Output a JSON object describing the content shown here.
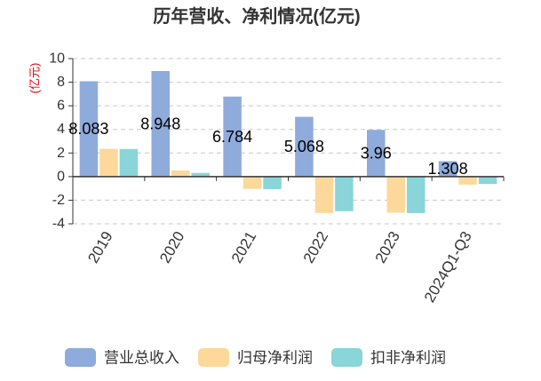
{
  "chart_data": {
    "type": "bar",
    "title": "历年营收、净利情况(亿元)",
    "xlabel": "",
    "ylabel": "(亿元)",
    "ylabel_color": "#e60012",
    "categories": [
      "2019",
      "2020",
      "2021",
      "2022",
      "2023",
      "2024Q1-Q3"
    ],
    "ylim": [
      -4,
      10
    ],
    "yticks": [
      10,
      8,
      6,
      4,
      2,
      0,
      -2,
      -4
    ],
    "grid": true,
    "legend": "bottom",
    "series": [
      {
        "name": "营业总收入",
        "color": "#8eabdb",
        "values": [
          8.083,
          8.948,
          6.784,
          5.068,
          3.96,
          1.308
        ],
        "data_labels": [
          "8.083",
          "8.948",
          "6.784",
          "5.068",
          "3.96",
          "1.308"
        ]
      },
      {
        "name": "归母净利润",
        "color": "#fdd89b",
        "values": [
          2.35,
          0.52,
          -1.04,
          -3.08,
          -3.06,
          -0.68
        ]
      },
      {
        "name": "扣非净利润",
        "color": "#89d5d9",
        "values": [
          2.34,
          0.31,
          -1.06,
          -2.93,
          -3.09,
          -0.62
        ]
      }
    ]
  }
}
